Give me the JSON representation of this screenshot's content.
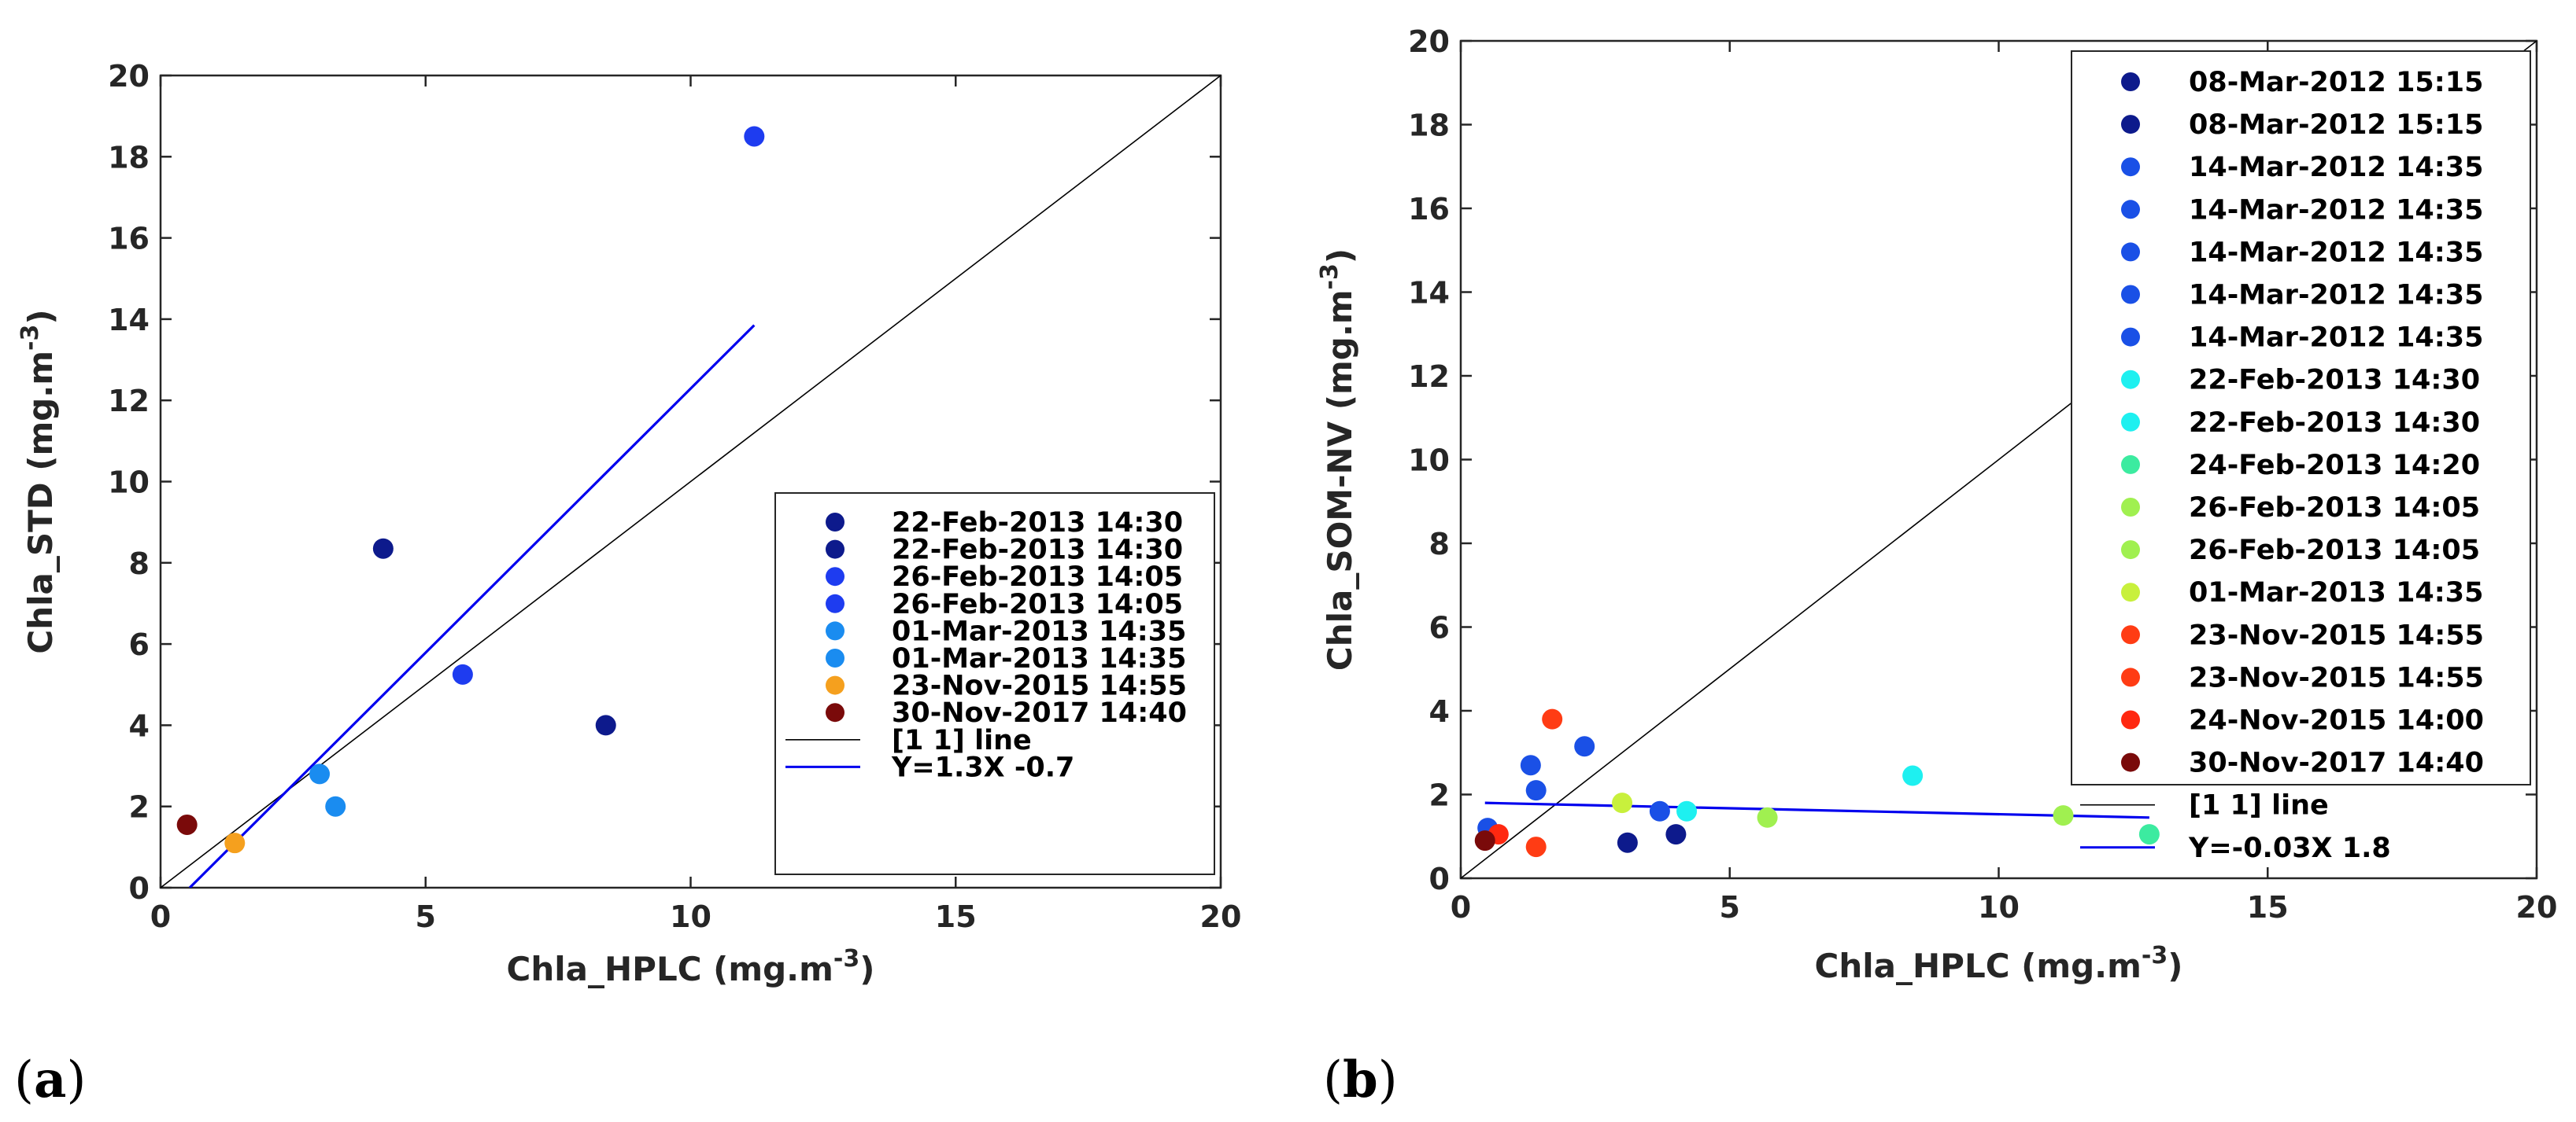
{
  "chart_data": [
    {
      "type": "scatter",
      "panel_label": "a",
      "xlabel": "Chla_HPLC (mg.m",
      "ylabel": "Chla_STD (mg.m",
      "unit_superscript": "-3",
      "xlim": [
        0,
        20
      ],
      "ylim": [
        0,
        20
      ],
      "xticks": [
        "0",
        "5",
        "10",
        "15",
        "20"
      ],
      "yticks": [
        "0",
        "2",
        "4",
        "6",
        "8",
        "10",
        "12",
        "14",
        "16",
        "18",
        "20"
      ],
      "legend_position": "bottom-right",
      "series": [
        {
          "name": "22-Feb-2013 14:30",
          "color": "#0d1a8c",
          "x": 4.2,
          "y": 8.35
        },
        {
          "name": "22-Feb-2013 14:30",
          "color": "#0d1a8c",
          "x": 8.4,
          "y": 4.0
        },
        {
          "name": "26-Feb-2013 14:05",
          "color": "#1e3cf0",
          "x": 11.2,
          "y": 18.5
        },
        {
          "name": "26-Feb-2013 14:05",
          "color": "#1e3cf0",
          "x": 5.7,
          "y": 5.25
        },
        {
          "name": "01-Mar-2013 14:35",
          "color": "#1a8cf0",
          "x": 3.0,
          "y": 2.8
        },
        {
          "name": "01-Mar-2013 14:35",
          "color": "#1a8cf0",
          "x": 3.3,
          "y": 2.0
        },
        {
          "name": "23-Nov-2015 14:55",
          "color": "#f5a01e",
          "x": 1.4,
          "y": 1.1
        },
        {
          "name": "30-Nov-2017 14:40",
          "color": "#7a0a0a",
          "x": 0.5,
          "y": 1.55
        }
      ],
      "lines": [
        {
          "name": "[1 1] line",
          "color": "#000000",
          "x": [
            0,
            20
          ],
          "y": [
            0,
            20
          ]
        },
        {
          "name": "Y=1.3X -0.7",
          "color": "#0000ee",
          "x": [
            0.55,
            11.2
          ],
          "y": [
            0.0,
            13.85
          ]
        }
      ]
    },
    {
      "type": "scatter",
      "panel_label": "b",
      "xlabel": "Chla_HPLC (mg.m",
      "ylabel": "Chla_SOM-NV (mg.m",
      "unit_superscript": "-3",
      "xlim": [
        0,
        20
      ],
      "ylim": [
        0,
        20
      ],
      "xticks": [
        "0",
        "5",
        "10",
        "15",
        "20"
      ],
      "yticks": [
        "0",
        "2",
        "4",
        "6",
        "8",
        "10",
        "12",
        "14",
        "16",
        "18",
        "20"
      ],
      "legend_position": "top-right",
      "series": [
        {
          "name": "08-Mar-2012 15:15",
          "color": "#0d1a8c",
          "x": 3.1,
          "y": 0.85
        },
        {
          "name": "08-Mar-2012 15:15",
          "color": "#0d1a8c",
          "x": 4.0,
          "y": 1.05
        },
        {
          "name": "14-Mar-2012 14:35",
          "color": "#1a50e6",
          "x": 1.3,
          "y": 2.7
        },
        {
          "name": "14-Mar-2012 14:35",
          "color": "#1a50e6",
          "x": 1.4,
          "y": 2.1
        },
        {
          "name": "14-Mar-2012 14:35",
          "color": "#1a50e6",
          "x": 2.3,
          "y": 3.15
        },
        {
          "name": "14-Mar-2012 14:35",
          "color": "#1a50e6",
          "x": 3.7,
          "y": 1.6
        },
        {
          "name": "14-Mar-2012 14:35",
          "color": "#1a50e6",
          "x": 0.5,
          "y": 1.2
        },
        {
          "name": "22-Feb-2013 14:30",
          "color": "#1ef0f0",
          "x": 8.4,
          "y": 2.45
        },
        {
          "name": "22-Feb-2013 14:30",
          "color": "#1ef0f0",
          "x": 4.2,
          "y": 1.6
        },
        {
          "name": "24-Feb-2013 14:20",
          "color": "#3ceba0",
          "x": 12.8,
          "y": 1.05
        },
        {
          "name": "26-Feb-2013 14:05",
          "color": "#a0f050",
          "x": 5.7,
          "y": 1.45
        },
        {
          "name": "26-Feb-2013 14:05",
          "color": "#a0f050",
          "x": 11.2,
          "y": 1.5
        },
        {
          "name": "01-Mar-2013 14:35",
          "color": "#c8f03c",
          "x": 3.0,
          "y": 1.8
        },
        {
          "name": "23-Nov-2015 14:55",
          "color": "#ff3c14",
          "x": 1.7,
          "y": 3.8
        },
        {
          "name": "23-Nov-2015 14:55",
          "color": "#ff3c14",
          "x": 1.4,
          "y": 0.75
        },
        {
          "name": "24-Nov-2015 14:00",
          "color": "#ff2810",
          "x": 0.7,
          "y": 1.05
        },
        {
          "name": "30-Nov-2017 14:40",
          "color": "#7a0a0a",
          "x": 0.45,
          "y": 0.9
        }
      ],
      "lines": [
        {
          "name": "[1 1] line",
          "color": "#000000",
          "x": [
            0,
            20
          ],
          "y": [
            0,
            20
          ]
        },
        {
          "name": "Y=-0.03X 1.8",
          "color": "#0000ee",
          "x": [
            0.45,
            12.8
          ],
          "y": [
            1.8,
            1.45
          ]
        }
      ]
    }
  ]
}
